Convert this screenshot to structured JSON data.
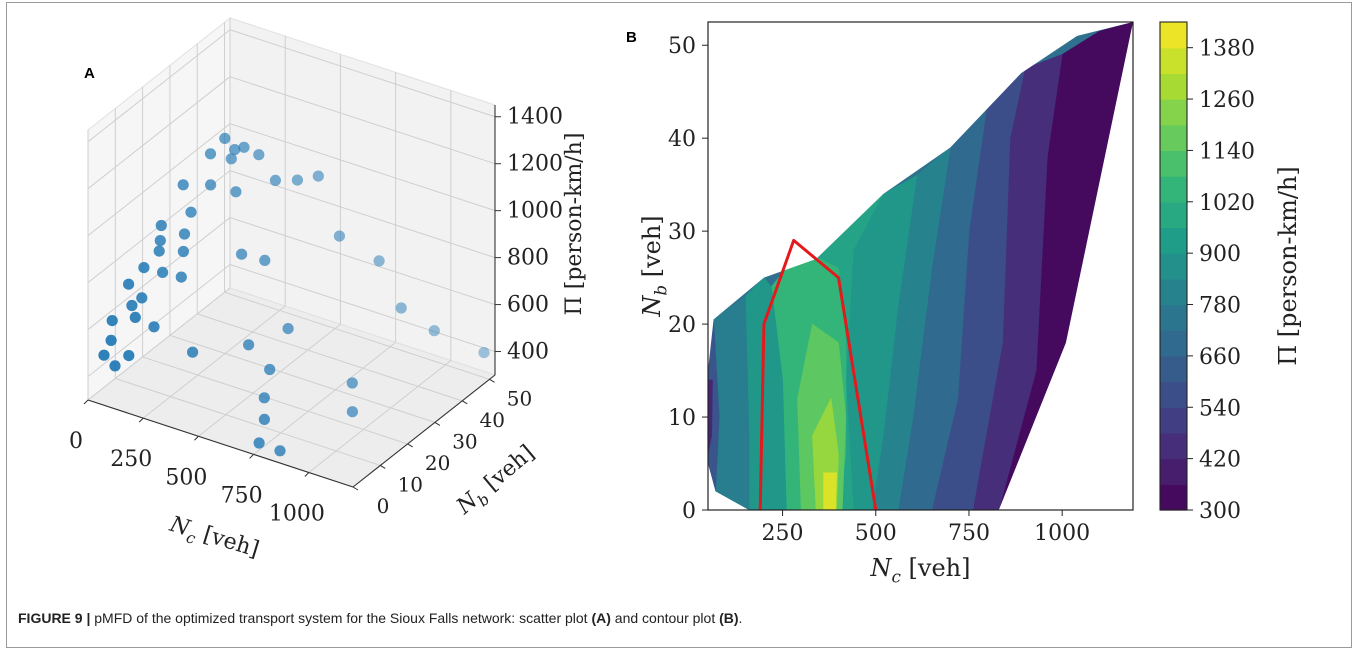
{
  "colors": {
    "scatter_point": "#1f77b4",
    "boundary": "#e31a1c",
    "frame": "#9a9a9a",
    "colormap": "viridis"
  },
  "chart_data": [
    {
      "panel": "A",
      "type": "scatter",
      "projection": "3d",
      "xlabel": "N_c [veh]",
      "ylabel": "N_b [veh]",
      "zlabel": "Π [person-km/h]",
      "x_ticks": [
        "0",
        "250",
        "500",
        "750",
        "1000"
      ],
      "y_ticks": [
        "0",
        "10",
        "20",
        "30",
        "40",
        "50"
      ],
      "z_ticks": [
        "400",
        "600",
        "800",
        "1000",
        "1200",
        "1400"
      ],
      "xlim": [
        0,
        1200
      ],
      "ylim": [
        0,
        52
      ],
      "zlim": [
        300,
        1450
      ],
      "grid": true,
      "points": [
        {
          "x": 60,
          "y": 40,
          "z": 1000
        },
        {
          "x": 100,
          "y": 42,
          "z": 1060
        },
        {
          "x": 120,
          "y": 44,
          "z": 1000
        },
        {
          "x": 80,
          "y": 46,
          "z": 930
        },
        {
          "x": 150,
          "y": 45,
          "z": 1010
        },
        {
          "x": 180,
          "y": 48,
          "z": 960
        },
        {
          "x": 60,
          "y": 30,
          "z": 960
        },
        {
          "x": 110,
          "y": 36,
          "z": 920
        },
        {
          "x": 200,
          "y": 38,
          "z": 900
        },
        {
          "x": 120,
          "y": 28,
          "z": 880
        },
        {
          "x": 60,
          "y": 22,
          "z": 860
        },
        {
          "x": 80,
          "y": 20,
          "z": 820
        },
        {
          "x": 140,
          "y": 24,
          "z": 830
        },
        {
          "x": 160,
          "y": 22,
          "z": 780
        },
        {
          "x": 100,
          "y": 18,
          "z": 800
        },
        {
          "x": 80,
          "y": 14,
          "z": 760
        },
        {
          "x": 140,
          "y": 16,
          "z": 740
        },
        {
          "x": 200,
          "y": 18,
          "z": 720
        },
        {
          "x": 60,
          "y": 10,
          "z": 720
        },
        {
          "x": 120,
          "y": 10,
          "z": 680
        },
        {
          "x": 100,
          "y": 8,
          "z": 660
        },
        {
          "x": 60,
          "y": 4,
          "z": 620
        },
        {
          "x": 140,
          "y": 6,
          "z": 640
        },
        {
          "x": 200,
          "y": 8,
          "z": 600
        },
        {
          "x": 80,
          "y": 2,
          "z": 560
        },
        {
          "x": 60,
          "y": 1,
          "z": 500
        },
        {
          "x": 110,
          "y": 1,
          "z": 470
        },
        {
          "x": 160,
          "y": 2,
          "z": 520
        },
        {
          "x": 280,
          "y": 46,
          "z": 900
        },
        {
          "x": 330,
          "y": 50,
          "z": 880
        },
        {
          "x": 400,
          "y": 52,
          "z": 900
        },
        {
          "x": 300,
          "y": 32,
          "z": 720
        },
        {
          "x": 380,
          "y": 34,
          "z": 700
        },
        {
          "x": 520,
          "y": 50,
          "z": 700
        },
        {
          "x": 700,
          "y": 50,
          "z": 650
        },
        {
          "x": 800,
          "y": 50,
          "z": 480
        },
        {
          "x": 950,
          "y": 50,
          "z": 430
        },
        {
          "x": 1150,
          "y": 52,
          "z": 380
        },
        {
          "x": 350,
          "y": 10,
          "z": 520
        },
        {
          "x": 480,
          "y": 20,
          "z": 500
        },
        {
          "x": 560,
          "y": 28,
          "z": 520
        },
        {
          "x": 600,
          "y": 18,
          "z": 450
        },
        {
          "x": 650,
          "y": 12,
          "z": 400
        },
        {
          "x": 700,
          "y": 8,
          "z": 360
        },
        {
          "x": 900,
          "y": 24,
          "z": 430
        },
        {
          "x": 950,
          "y": 20,
          "z": 360
        },
        {
          "x": 750,
          "y": 2,
          "z": 330
        },
        {
          "x": 820,
          "y": 4,
          "z": 300
        }
      ]
    },
    {
      "panel": "B",
      "type": "heatmap",
      "subtype": "filled-contour",
      "xlabel": "N_c [veh]",
      "ylabel": "N_b [veh]",
      "colorbar_label": "Π [person-km/h]",
      "xlim": [
        50,
        1190
      ],
      "ylim": [
        0,
        52.5
      ],
      "x_ticks": [
        250,
        500,
        750,
        1000
      ],
      "y_ticks": [
        0,
        10,
        20,
        30,
        40,
        50
      ],
      "colorbar_ticks": [
        300,
        420,
        540,
        660,
        780,
        900,
        1020,
        1140,
        1260,
        1380
      ],
      "colorbar_range": [
        300,
        1440
      ],
      "levels": [
        300,
        360,
        420,
        480,
        540,
        600,
        660,
        720,
        780,
        840,
        900,
        960,
        1020,
        1080,
        1140,
        1200,
        1260,
        1320,
        1380,
        1440
      ],
      "domain_boundary": [
        [
          70,
          2
        ],
        [
          160,
          0
        ],
        [
          830,
          0
        ],
        [
          1010,
          18
        ],
        [
          1190,
          52.5
        ],
        [
          1040,
          51
        ],
        [
          890,
          47
        ],
        [
          700,
          39
        ],
        [
          520,
          34
        ],
        [
          340,
          27
        ],
        [
          200,
          25
        ],
        [
          65,
          20.5
        ],
        [
          50,
          15
        ],
        [
          50,
          5
        ]
      ],
      "regions": [
        {
          "value": 330,
          "poly": [
            [
              1010,
              18
            ],
            [
              1190,
              52.5
            ],
            [
              1100,
              51.5
            ],
            [
              1000,
              49
            ],
            [
              960,
              38
            ],
            [
              930,
              15
            ],
            [
              830,
              0
            ]
          ]
        },
        {
          "value": 450,
          "poly": [
            [
              830,
              0
            ],
            [
              930,
              15
            ],
            [
              960,
              38
            ],
            [
              1000,
              49
            ],
            [
              900,
              47.5
            ],
            [
              860,
              40
            ],
            [
              840,
              18
            ],
            [
              760,
              0
            ]
          ]
        },
        {
          "value": 570,
          "poly": [
            [
              760,
              0
            ],
            [
              840,
              18
            ],
            [
              860,
              40
            ],
            [
              900,
              47.5
            ],
            [
              800,
              44
            ],
            [
              750,
              30
            ],
            [
              720,
              12
            ],
            [
              650,
              0
            ]
          ]
        },
        {
          "value": 690,
          "poly": [
            [
              650,
              0
            ],
            [
              720,
              12
            ],
            [
              750,
              30
            ],
            [
              800,
              44
            ],
            [
              700,
              39
            ],
            [
              650,
              26
            ],
            [
              600,
              10
            ],
            [
              560,
              0
            ]
          ]
        },
        {
          "value": 810,
          "poly": [
            [
              560,
              0
            ],
            [
              600,
              10
            ],
            [
              650,
              26
            ],
            [
              700,
              39
            ],
            [
              610,
              36
            ],
            [
              560,
              22
            ],
            [
              520,
              8
            ],
            [
              490,
              0
            ]
          ]
        },
        {
          "value": 900,
          "poly": [
            [
              490,
              0
            ],
            [
              520,
              8
            ],
            [
              560,
              22
            ],
            [
              610,
              36
            ],
            [
              520,
              34
            ],
            [
              440,
              28
            ],
            [
              420,
              14
            ],
            [
              440,
              0
            ]
          ]
        },
        {
          "value": 960,
          "poly": [
            [
              440,
              0
            ],
            [
              420,
              14
            ],
            [
              440,
              28
            ],
            [
              520,
              34
            ],
            [
              430,
              31
            ],
            [
              300,
              28
            ],
            [
              220,
              24
            ],
            [
              250,
              14
            ],
            [
              260,
              0
            ]
          ]
        },
        {
          "value": 1050,
          "poly": [
            [
              260,
              0
            ],
            [
              250,
              14
            ],
            [
              220,
              24
            ],
            [
              300,
              28
            ],
            [
              400,
              26
            ],
            [
              420,
              18
            ],
            [
              420,
              6
            ],
            [
              400,
              0
            ]
          ]
        },
        {
          "value": 1150,
          "poly": [
            [
              300,
              0
            ],
            [
              290,
              12
            ],
            [
              330,
              20
            ],
            [
              400,
              18
            ],
            [
              420,
              10
            ],
            [
              410,
              0
            ]
          ]
        },
        {
          "value": 1260,
          "poly": [
            [
              340,
              0
            ],
            [
              330,
              8
            ],
            [
              380,
              12
            ],
            [
              400,
              6
            ],
            [
              395,
              0
            ]
          ]
        },
        {
          "value": 1380,
          "poly": [
            [
              360,
              0
            ],
            [
              360,
              4
            ],
            [
              395,
              4
            ],
            [
              392,
              0
            ]
          ]
        },
        {
          "value": 900,
          "poly": [
            [
              160,
              0
            ],
            [
              260,
              0
            ],
            [
              250,
              14
            ],
            [
              220,
              24
            ],
            [
              200,
              25
            ],
            [
              150,
              23
            ],
            [
              160,
              8
            ]
          ]
        },
        {
          "value": 780,
          "poly": [
            [
              70,
              2
            ],
            [
              160,
              0
            ],
            [
              160,
              8
            ],
            [
              150,
              23
            ],
            [
              65,
              20.5
            ],
            [
              80,
              10
            ]
          ]
        },
        {
          "value": 600,
          "poly": [
            [
              50,
              5
            ],
            [
              70,
              2
            ],
            [
              80,
              10
            ],
            [
              65,
              20.5
            ],
            [
              50,
              15
            ]
          ]
        },
        {
          "value": 420,
          "poly": [
            [
              50,
              6
            ],
            [
              60,
              8
            ],
            [
              62,
              14
            ],
            [
              50,
              14
            ]
          ]
        }
      ],
      "feasible_region_outline": [
        [
          190,
          0
        ],
        [
          200,
          20
        ],
        [
          280,
          29
        ],
        [
          400,
          25
        ],
        [
          500,
          0
        ]
      ]
    }
  ],
  "panel_a_label": "A",
  "panel_b_label": "B",
  "caption": {
    "figure_label": "FIGURE 9 |",
    "text_1": " pMFD of the optimized transport system for the Sioux Falls network: scatter plot ",
    "ref_a": "(A)",
    "text_2": " and contour plot ",
    "ref_b": "(B)",
    "text_3": "."
  }
}
